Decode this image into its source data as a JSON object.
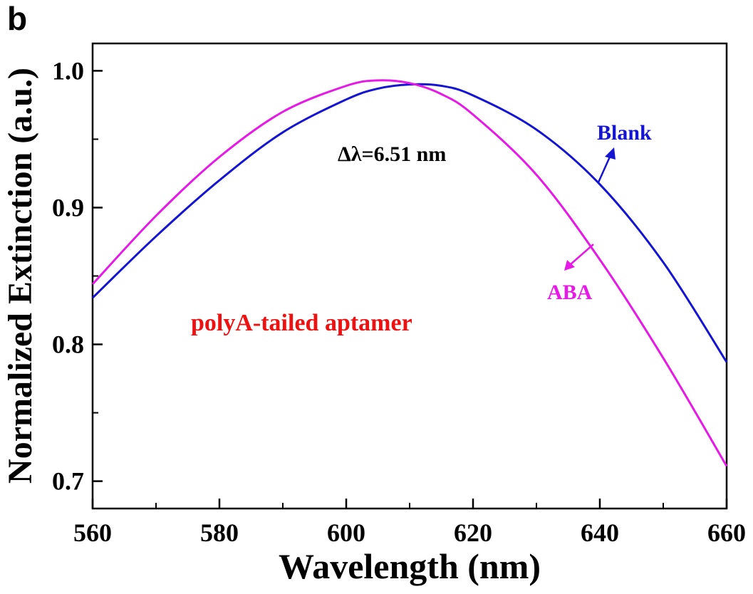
{
  "panel_label": "b",
  "top_cut_text": "",
  "chart_data": {
    "type": "line",
    "title": "",
    "xlabel": "Wavelength (nm)",
    "ylabel": "Normalized Extinction (a.u.)",
    "xlim": [
      560,
      660
    ],
    "ylim": [
      0.68,
      1.02
    ],
    "x_ticks": [
      560,
      580,
      600,
      620,
      640,
      660
    ],
    "x_tick_labels": [
      "560",
      "580",
      "600",
      "620",
      "640",
      "660"
    ],
    "y_ticks": [
      0.7,
      0.8,
      0.9,
      1.0
    ],
    "y_tick_labels": [
      "0.7",
      "0.8",
      "0.9",
      "1.0"
    ],
    "grid": false,
    "series": [
      {
        "name": "Blank",
        "color": "#1414d2",
        "x": [
          560,
          570,
          580,
          590,
          600,
          605,
          610,
          615,
          620,
          630,
          640,
          650,
          660
        ],
        "y": [
          0.834,
          0.879,
          0.92,
          0.955,
          0.979,
          0.987,
          0.99,
          0.989,
          0.982,
          0.957,
          0.917,
          0.86,
          0.787
        ]
      },
      {
        "name": "ABA",
        "color": "#e619e6",
        "x": [
          560,
          570,
          580,
          590,
          600,
          605,
          610,
          615,
          620,
          630,
          640,
          650,
          660
        ],
        "y": [
          0.844,
          0.894,
          0.937,
          0.97,
          0.989,
          0.993,
          0.991,
          0.983,
          0.968,
          0.924,
          0.862,
          0.79,
          0.711
        ]
      }
    ],
    "annotations": {
      "shift": "Δλ=6.51 nm",
      "sample": "polyA-tailed aptamer",
      "blank_label": "Blank",
      "aba_label": "ABA"
    }
  }
}
